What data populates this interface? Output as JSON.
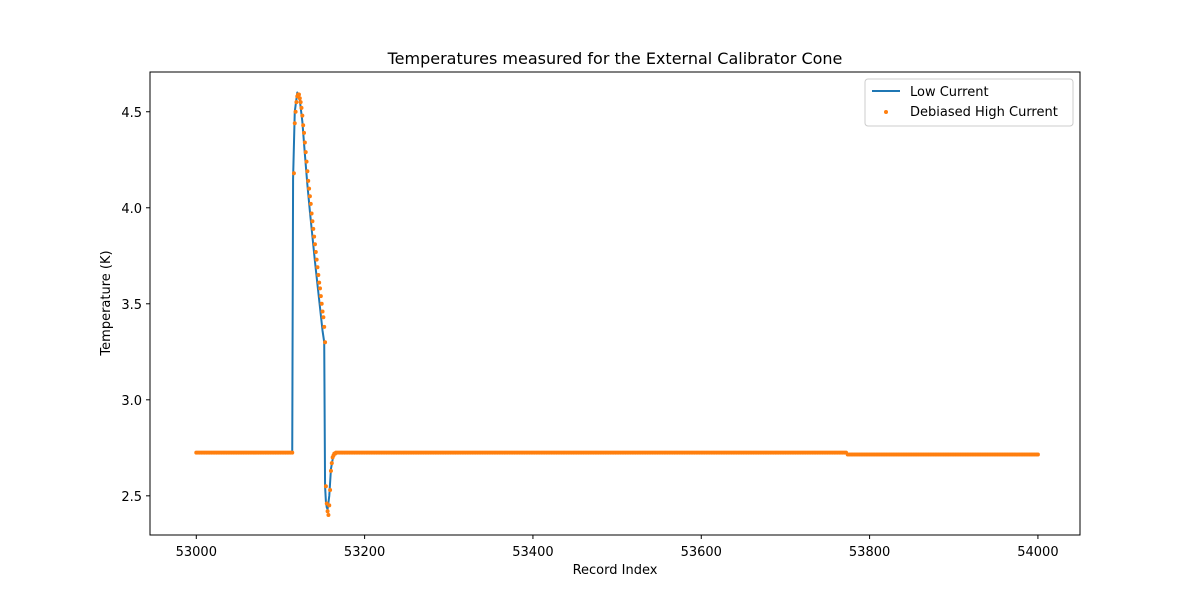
{
  "chart_data": {
    "type": "line",
    "title": "Temperatures measured for the External Calibrator Cone",
    "xlabel": "Record Index",
    "ylabel": "Temperature (K)",
    "xlim": [
      52945,
      54050
    ],
    "ylim": [
      2.296,
      4.707
    ],
    "xticks": [
      53000,
      53200,
      53400,
      53600,
      53800,
      54000
    ],
    "yticks": [
      2.5,
      3.0,
      3.5,
      4.0,
      4.5
    ],
    "xtick_labels": [
      "53000",
      "53200",
      "53400",
      "53600",
      "53800",
      "54000"
    ],
    "ytick_labels": [
      "2.5",
      "3.0",
      "3.5",
      "4.0",
      "4.5"
    ],
    "grid": false,
    "legend_position": "top-right",
    "colors": {
      "low_current": "#1f77b4",
      "debiased_high_current": "#ff7f0e"
    },
    "series": [
      {
        "name": "Low Current",
        "style": "line",
        "x": [
          53000,
          53114,
          53115,
          53117,
          53120,
          53123,
          53126,
          53129,
          53132,
          53135,
          53138,
          53141,
          53144,
          53147,
          53150,
          53152,
          53153,
          53154,
          53155,
          53156,
          53158,
          53160,
          53162,
          53163,
          53165,
          53168,
          53773,
          53775,
          54000
        ],
        "y": [
          2.725,
          2.725,
          4.15,
          4.5,
          4.6,
          4.56,
          4.45,
          4.28,
          4.12,
          3.98,
          3.85,
          3.72,
          3.6,
          3.48,
          3.36,
          3.3,
          2.55,
          2.47,
          2.44,
          2.43,
          2.5,
          2.64,
          2.69,
          2.71,
          2.72,
          2.725,
          2.725,
          2.715,
          2.715
        ]
      },
      {
        "name": "Debiased High Current",
        "style": "scatter",
        "segments": [
          {
            "x_start": 53000,
            "x_end": 53114,
            "y": 2.725
          },
          {
            "x_start": 53166,
            "x_end": 53772,
            "y": 2.725
          },
          {
            "x_start": 53774,
            "x_end": 54000,
            "y": 2.715
          }
        ],
        "x": [
          53116,
          53117,
          53118,
          53119,
          53120,
          53121,
          53122,
          53123,
          53124,
          53125,
          53126,
          53127,
          53128,
          53129,
          53130,
          53131,
          53132,
          53133,
          53134,
          53135,
          53136,
          53137,
          53138,
          53139,
          53140,
          53141,
          53142,
          53143,
          53144,
          53145,
          53146,
          53147,
          53148,
          53149,
          53150,
          53151,
          53152,
          53153,
          53154,
          53155,
          53156,
          53157,
          53158,
          53159,
          53160,
          53161,
          53162,
          53163,
          53164,
          53165
        ],
        "y": [
          4.18,
          4.44,
          4.5,
          4.55,
          4.58,
          4.59,
          4.59,
          4.57,
          4.55,
          4.52,
          4.48,
          4.43,
          4.39,
          4.34,
          4.29,
          4.24,
          4.19,
          4.14,
          4.1,
          4.06,
          4.02,
          3.97,
          3.93,
          3.89,
          3.85,
          3.81,
          3.77,
          3.73,
          3.69,
          3.65,
          3.61,
          3.58,
          3.54,
          3.5,
          3.46,
          3.43,
          3.38,
          3.3,
          2.55,
          2.46,
          2.42,
          2.4,
          2.45,
          2.53,
          2.63,
          2.67,
          2.7,
          2.71,
          2.72,
          2.72
        ]
      }
    ]
  }
}
